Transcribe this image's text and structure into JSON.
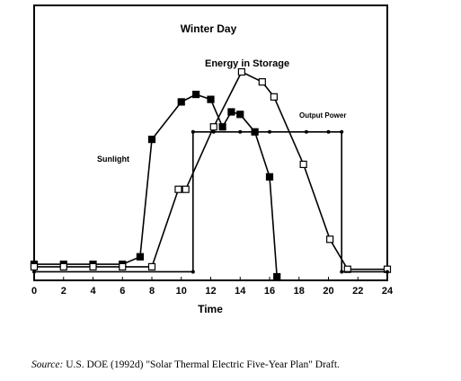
{
  "chart_data": {
    "type": "line",
    "title": "Winter Day",
    "xlabel": "Time",
    "ylabel": "",
    "xlim": [
      0,
      24
    ],
    "ylim": [
      0,
      1
    ],
    "xticks": [
      "0",
      "2",
      "4",
      "6",
      "8",
      "10",
      "12",
      "14",
      "16",
      "18",
      "20",
      "22",
      "24"
    ],
    "series": [
      {
        "name": "Sunlight",
        "marker": "filled-square",
        "x": [
          0,
          2,
          4,
          6,
          7.2,
          8,
          10,
          11,
          12,
          12.8,
          13.4,
          14,
          15,
          16,
          16.5
        ],
        "y": [
          0.05,
          0.05,
          0.05,
          0.05,
          0.08,
          0.55,
          0.7,
          0.73,
          0.71,
          0.6,
          0.66,
          0.65,
          0.58,
          0.4,
          0.0
        ]
      },
      {
        "name": "Energy in Storage",
        "marker": "open-square",
        "x": [
          0,
          2,
          4,
          6,
          8,
          9.8,
          10.3,
          12.2,
          14.1,
          15.5,
          16.3,
          18.3,
          20.1,
          21.3,
          24
        ],
        "y": [
          0.04,
          0.04,
          0.04,
          0.04,
          0.04,
          0.35,
          0.35,
          0.6,
          0.82,
          0.78,
          0.72,
          0.45,
          0.15,
          0.03,
          0.03
        ]
      },
      {
        "name": "Output Power",
        "marker": "dot",
        "x": [
          0,
          10.8,
          10.8,
          12.2,
          14,
          16,
          18.5,
          20,
          20.9,
          20.9,
          24
        ],
        "y": [
          0.02,
          0.02,
          0.58,
          0.58,
          0.58,
          0.58,
          0.58,
          0.58,
          0.58,
          0.02,
          0.02
        ]
      }
    ],
    "grid": false,
    "legend": "inline labels"
  },
  "source_note": {
    "prefix": "Source:",
    "text": "U.S. DOE (1992d) \"Solar Thermal Electric Five-Year Plan\"  Draft."
  }
}
